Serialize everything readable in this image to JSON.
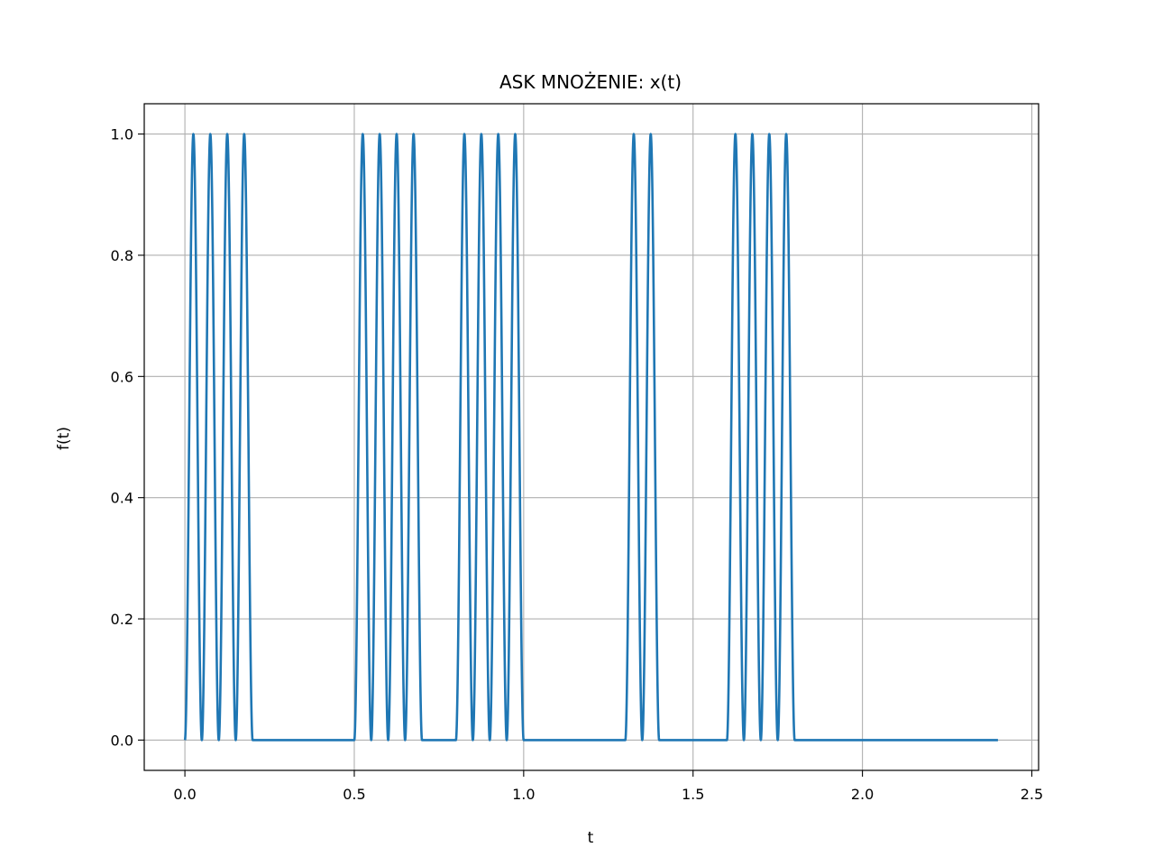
{
  "chart_data": {
    "type": "line",
    "title": "ASK MNOŻENIE: x(t)",
    "xlabel": "t",
    "ylabel": "f(t)",
    "xlim": [
      -0.12,
      2.52
    ],
    "ylim": [
      -0.05,
      1.05
    ],
    "xticks": [
      0.0,
      0.5,
      1.0,
      1.5,
      2.0,
      2.5
    ],
    "xtick_labels": [
      "0.0",
      "0.5",
      "1.0",
      "1.5",
      "2.0",
      "2.5"
    ],
    "yticks": [
      0.0,
      0.2,
      0.4,
      0.6,
      0.8,
      1.0
    ],
    "ytick_labels": [
      "0.0",
      "0.2",
      "0.4",
      "0.6",
      "0.8",
      "1.0"
    ],
    "grid": true,
    "legend": "none",
    "series": [
      {
        "color": "#1f77b4",
        "formula": "sin^2(20*pi*t) when bit on, 0 otherwise",
        "carrier_frequency_hz": 10,
        "bit_duration": 0.1,
        "t_range": [
          0,
          2.4
        ],
        "bits": [
          1,
          1,
          0,
          0,
          0,
          1,
          1,
          0,
          1,
          1,
          0,
          0,
          0,
          1,
          0,
          0,
          1,
          1,
          0,
          0,
          0,
          0,
          0,
          0
        ]
      }
    ]
  }
}
